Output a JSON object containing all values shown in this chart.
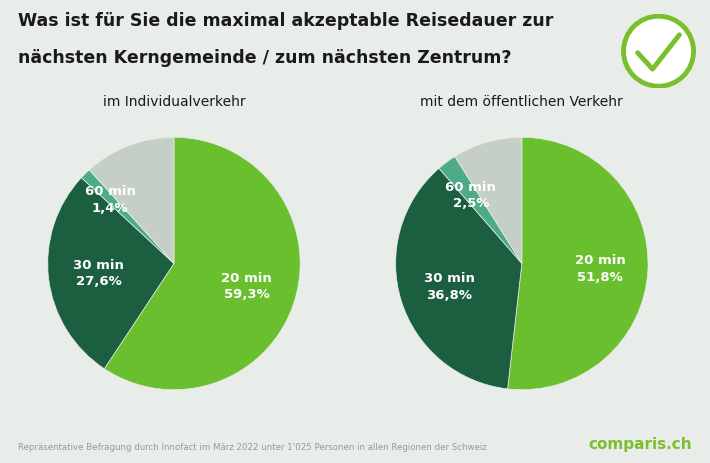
{
  "title_line1": "Was ist für Sie die maximal akzeptable Reisedauer zur",
  "title_line2": "nächsten Kerngemeinde / zum nächsten Zentrum?",
  "subtitle_left": "im Individualverkehr",
  "subtitle_right": "mit dem öffentlichen Verkehr",
  "pie1": {
    "values": [
      59.3,
      27.6,
      1.4,
      11.7
    ],
    "pct_labels": [
      "59,3%",
      "27,6%",
      "1,4%",
      ""
    ],
    "min_labels": [
      "20 min",
      "30 min",
      "60 min",
      ""
    ],
    "colors": [
      "#6abf2e",
      "#1b5e40",
      "#4dab8a",
      "#c5cfc5"
    ],
    "label_radii": [
      0.6,
      0.6,
      0.72,
      0.0
    ]
  },
  "pie2": {
    "values": [
      51.8,
      36.8,
      2.5,
      8.9
    ],
    "pct_labels": [
      "51,8%",
      "36,8%",
      "2,5%",
      ""
    ],
    "min_labels": [
      "20 min",
      "30 min",
      "60 min",
      ""
    ],
    "colors": [
      "#6abf2e",
      "#1b5e40",
      "#4dab8a",
      "#c5cfc5"
    ],
    "label_radii": [
      0.62,
      0.6,
      0.68,
      0.0
    ]
  },
  "footer": "Repräsentative Befragung durch Innofact im März 2022 unter 1'025 Personen in allen Regionen der Schweiz",
  "logo_text": "comparis.ch",
  "background_color": "#e9ede9",
  "title_color": "#1a1a1a",
  "footer_color": "#999999",
  "logo_color": "#7abf2e",
  "label_color": "#ffffff"
}
